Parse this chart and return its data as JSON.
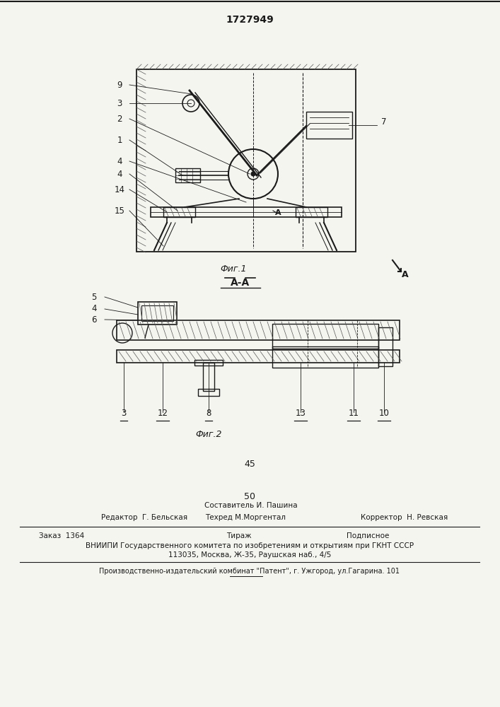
{
  "patent_number": "1727949",
  "fig1_caption": "Фиг.1",
  "fig2_caption": "Фиг.2",
  "bg_color": "#f5f5f0",
  "line_color": "#1a1a1a",
  "numbers_45": "45",
  "numbers_50": "50",
  "editor_line": "Редактор  Г. Бельская",
  "compiler_line1": "Составитель И. Пашина",
  "techred_line": "Техред М.Моргентал",
  "corrector_line": "Корректор  Н. Ревская",
  "order_line": "Заказ  1364",
  "tirazh_line": "Тираж",
  "podpisnoe_line": "Подписное",
  "vniiipi_line": "ВНИИПИ Государственного комитета по изобретениям и открытиям при ГКНТ СССР",
  "address_line": "113035, Москва, Ж-35, Раушская наб., 4/5",
  "publisher_line": "Производственно-издательский комбинат \"Патент\", г. Ужгород, ул.Гагарина. 101"
}
